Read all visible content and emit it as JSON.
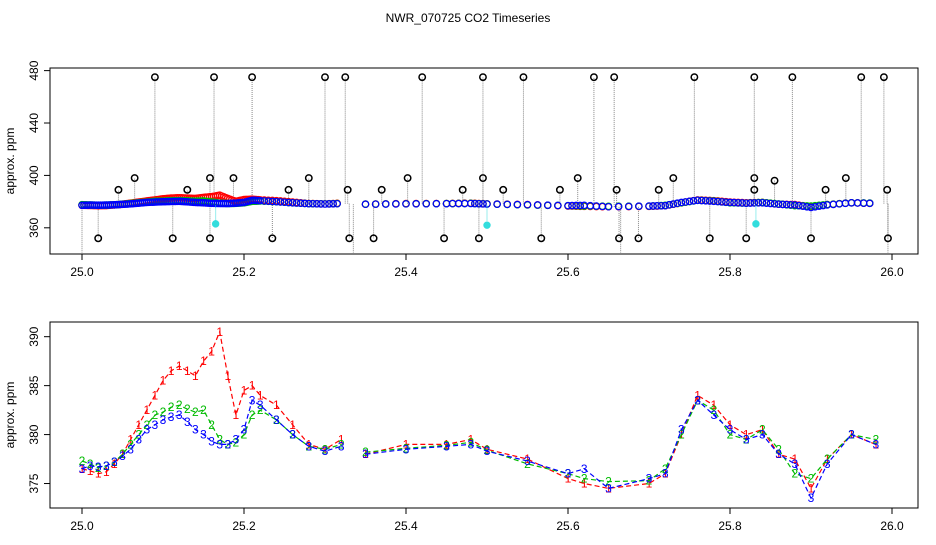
{
  "title": "NWR_070725  CO2 Timeseries",
  "chart_data": [
    {
      "type": "scatter",
      "ylabel": "approx. ppm",
      "xlim": [
        25.0,
        26.0
      ],
      "ylim": [
        340,
        482
      ],
      "xticks": [
        25.0,
        25.2,
        25.4,
        25.6,
        25.8,
        26.0
      ],
      "xtick_labels": [
        "25.0",
        "25.2",
        "25.4",
        "25.6",
        "25.8",
        "26.0"
      ],
      "yticks": [
        360,
        400,
        440,
        480
      ],
      "ytick_labels": [
        "360",
        "400",
        "440",
        "480"
      ],
      "grid": false,
      "colors": {
        "spike": "#000000",
        "line1": "#ff0000",
        "line2": "#00bb00",
        "line3": "#0000ff",
        "cyan": "#33dddd"
      },
      "spikes_high": [
        25.09,
        25.163,
        25.21,
        25.3,
        25.325,
        25.42,
        25.495,
        25.545,
        25.632,
        25.657,
        25.756,
        25.83,
        25.877,
        25.962,
        25.99
      ],
      "spike_high_value": 475,
      "spikes_mid": [
        {
          "x": 25.045,
          "y": 389
        },
        {
          "x": 25.065,
          "y": 398
        },
        {
          "x": 25.13,
          "y": 389
        },
        {
          "x": 25.158,
          "y": 398
        },
        {
          "x": 25.187,
          "y": 398
        },
        {
          "x": 25.255,
          "y": 389
        },
        {
          "x": 25.28,
          "y": 398
        },
        {
          "x": 25.328,
          "y": 389
        },
        {
          "x": 25.37,
          "y": 389
        },
        {
          "x": 25.402,
          "y": 398
        },
        {
          "x": 25.47,
          "y": 389
        },
        {
          "x": 25.495,
          "y": 398
        },
        {
          "x": 25.52,
          "y": 389
        },
        {
          "x": 25.59,
          "y": 389
        },
        {
          "x": 25.612,
          "y": 398
        },
        {
          "x": 25.66,
          "y": 389
        },
        {
          "x": 25.712,
          "y": 389
        },
        {
          "x": 25.73,
          "y": 398
        },
        {
          "x": 25.83,
          "y": 389
        },
        {
          "x": 25.83,
          "y": 398
        },
        {
          "x": 25.855,
          "y": 396
        },
        {
          "x": 25.918,
          "y": 389
        },
        {
          "x": 25.943,
          "y": 398
        },
        {
          "x": 25.994,
          "y": 389
        }
      ],
      "spikes_low": [
        25.02,
        25.112,
        25.158,
        25.235,
        25.33,
        25.36,
        25.447,
        25.49,
        25.567,
        25.663,
        25.687,
        25.775,
        25.82,
        25.9,
        25.995
      ],
      "spike_low_value": 352,
      "cyan_points": [
        {
          "x": 25.165,
          "y": 363
        },
        {
          "x": 25.5,
          "y": 362
        },
        {
          "x": 25.832,
          "y": 363
        }
      ]
    },
    {
      "type": "line",
      "ylabel": "approx. ppm",
      "xlim": [
        25.0,
        26.0
      ],
      "ylim": [
        372.5,
        391.5
      ],
      "xticks": [
        25.0,
        25.2,
        25.4,
        25.6,
        25.8,
        26.0
      ],
      "xtick_labels": [
        "25.0",
        "25.2",
        "25.4",
        "25.6",
        "25.8",
        "26.0"
      ],
      "yticks": [
        375,
        380,
        385,
        390
      ],
      "ytick_labels": [
        "375",
        "380",
        "385",
        "390"
      ],
      "grid": false,
      "series": [
        {
          "marker": "1",
          "color": "#ff0000",
          "x": [
            25.0,
            25.01,
            25.02,
            25.03,
            25.04,
            25.05,
            25.06,
            25.07,
            25.08,
            25.09,
            25.1,
            25.11,
            25.12,
            25.13,
            25.14,
            25.15,
            25.16,
            25.17,
            25.18,
            25.19,
            25.2,
            25.21,
            25.22,
            25.24,
            25.26,
            25.28,
            25.3,
            25.32,
            25.33,
            25.35,
            25.4,
            25.45,
            25.48,
            25.5,
            25.55,
            25.6,
            25.62,
            25.65,
            25.7,
            25.72,
            25.74,
            25.76,
            25.78,
            25.8,
            25.82,
            25.84,
            25.86,
            25.88,
            25.9,
            25.92,
            25.95,
            25.98
          ],
          "y": [
            376.5,
            376.3,
            376.0,
            376.2,
            377.0,
            378.0,
            379.5,
            381.0,
            382.5,
            384.0,
            385.5,
            386.5,
            387.0,
            386.5,
            386.0,
            387.5,
            388.5,
            390.5,
            386.0,
            382.0,
            384.5,
            385.0,
            384.0,
            383.0,
            381.0,
            379.0,
            378.5,
            379.5,
            null,
            378.0,
            379.0,
            379.0,
            379.5,
            378.5,
            377.5,
            375.5,
            375.0,
            374.5,
            375.0,
            376.0,
            380.0,
            384.0,
            383.0,
            381.0,
            380.0,
            380.5,
            378.0,
            377.5,
            374.5,
            377.5,
            380.0,
            379.0
          ]
        },
        {
          "marker": "2",
          "color": "#00bb00",
          "x": [
            25.0,
            25.01,
            25.02,
            25.03,
            25.04,
            25.05,
            25.06,
            25.07,
            25.08,
            25.09,
            25.1,
            25.11,
            25.12,
            25.13,
            25.14,
            25.15,
            25.16,
            25.17,
            25.18,
            25.19,
            25.2,
            25.21,
            25.22,
            25.24,
            25.26,
            25.28,
            25.3,
            25.32,
            25.33,
            25.35,
            25.4,
            25.45,
            25.48,
            25.5,
            25.55,
            25.6,
            25.62,
            25.65,
            25.7,
            25.72,
            25.74,
            25.76,
            25.78,
            25.8,
            25.82,
            25.84,
            25.86,
            25.88,
            25.9,
            25.92,
            25.95,
            25.98
          ],
          "y": [
            377.3,
            377.0,
            376.6,
            376.8,
            377.2,
            378.0,
            379.0,
            380.0,
            381.0,
            382.0,
            382.3,
            382.8,
            383.0,
            382.6,
            382.3,
            382.5,
            381.0,
            379.5,
            379.0,
            379.2,
            380.0,
            382.0,
            382.5,
            381.5,
            380.0,
            378.8,
            378.5,
            379.0,
            null,
            378.2,
            378.6,
            378.9,
            379.2,
            378.4,
            377.0,
            376.0,
            375.5,
            375.2,
            375.3,
            376.5,
            380.0,
            383.5,
            382.5,
            380.0,
            379.5,
            380.5,
            378.5,
            376.0,
            375.5,
            377.5,
            380.0,
            379.5
          ]
        },
        {
          "marker": "3",
          "color": "#0000ff",
          "x": [
            25.0,
            25.01,
            25.02,
            25.03,
            25.04,
            25.05,
            25.06,
            25.07,
            25.08,
            25.09,
            25.1,
            25.11,
            25.12,
            25.13,
            25.14,
            25.15,
            25.16,
            25.17,
            25.18,
            25.19,
            25.2,
            25.21,
            25.22,
            25.24,
            25.26,
            25.28,
            25.3,
            25.32,
            25.33,
            25.35,
            25.4,
            25.45,
            25.48,
            25.5,
            25.55,
            25.6,
            25.62,
            25.65,
            25.7,
            25.72,
            25.74,
            25.76,
            25.78,
            25.8,
            25.82,
            25.84,
            25.86,
            25.88,
            25.9,
            25.92,
            25.95,
            25.98
          ],
          "y": [
            376.5,
            376.8,
            376.7,
            376.8,
            377.2,
            377.8,
            378.5,
            379.5,
            380.5,
            381.0,
            381.5,
            381.8,
            382.0,
            381.3,
            380.5,
            380.0,
            379.3,
            379.0,
            379.0,
            379.5,
            380.5,
            383.5,
            383.0,
            381.5,
            380.0,
            378.8,
            378.3,
            378.8,
            null,
            378.0,
            378.5,
            378.8,
            379.0,
            378.3,
            377.3,
            376.0,
            376.5,
            374.5,
            375.5,
            376.0,
            380.5,
            383.5,
            382.0,
            380.5,
            379.5,
            380.0,
            378.0,
            377.0,
            373.5,
            377.0,
            380.0,
            379.0
          ]
        }
      ]
    }
  ]
}
